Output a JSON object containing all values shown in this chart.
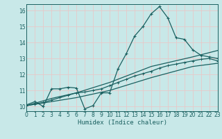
{
  "xlabel": "Humidex (Indice chaleur)",
  "bg_color": "#c8e8e8",
  "grid_color": "#e8c8c8",
  "line_color": "#1a6060",
  "xlim": [
    0,
    23
  ],
  "ylim": [
    9.7,
    16.4
  ],
  "xticks": [
    0,
    1,
    2,
    3,
    4,
    5,
    6,
    7,
    8,
    9,
    10,
    11,
    12,
    13,
    14,
    15,
    16,
    17,
    18,
    19,
    20,
    21,
    22,
    23
  ],
  "yticks": [
    10,
    11,
    12,
    13,
    14,
    15,
    16
  ],
  "line1_x": [
    0,
    1,
    2,
    3,
    4,
    5,
    6,
    7,
    8,
    9,
    10,
    11,
    12,
    13,
    14,
    15,
    16,
    17,
    18,
    19,
    20,
    21,
    22,
    23
  ],
  "line1_y": [
    10.1,
    10.3,
    10.0,
    11.1,
    11.1,
    11.2,
    11.15,
    9.85,
    10.05,
    10.85,
    10.85,
    12.35,
    13.3,
    14.4,
    15.0,
    15.8,
    16.25,
    15.55,
    14.3,
    14.2,
    13.55,
    13.2,
    13.1,
    13.0
  ],
  "line2_x": [
    0,
    1,
    2,
    3,
    4,
    5,
    6,
    7,
    8,
    9,
    10,
    11,
    12,
    13,
    14,
    15,
    16,
    17,
    18,
    19,
    20,
    21,
    22,
    23
  ],
  "line2_y": [
    10.05,
    10.15,
    10.25,
    10.4,
    10.55,
    10.7,
    10.85,
    10.9,
    11.0,
    11.1,
    11.3,
    11.5,
    11.7,
    11.9,
    12.05,
    12.2,
    12.4,
    12.55,
    12.65,
    12.75,
    12.85,
    12.95,
    13.0,
    12.85
  ],
  "line3_x": [
    0,
    3,
    6,
    10,
    15,
    20,
    23
  ],
  "line3_y": [
    10.05,
    10.5,
    10.85,
    11.5,
    12.5,
    13.1,
    13.5
  ],
  "line4_x": [
    0,
    3,
    6,
    10,
    15,
    20,
    23
  ],
  "line4_y": [
    10.05,
    10.3,
    10.55,
    11.0,
    11.8,
    12.5,
    12.7
  ]
}
